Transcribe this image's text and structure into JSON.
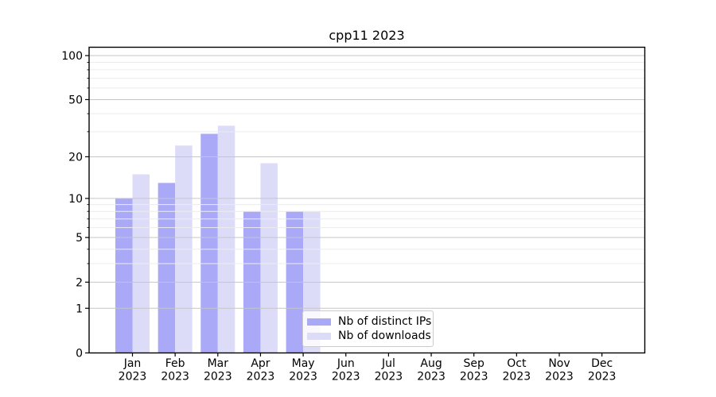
{
  "colors": {
    "distinct_ips_bar": "#a9a9f8",
    "downloads_bar": "#dcdcf9",
    "grid_major": "#c6c6c6",
    "grid_minor": "#ececec",
    "axis": "#000000",
    "tick_label": "#000000",
    "legend_border": "#cccccc",
    "background": "#ffffff"
  },
  "chart_data": {
    "type": "bar",
    "title": "cpp11 2023",
    "categories": [
      "Jan 2023",
      "Feb 2023",
      "Mar 2023",
      "Apr 2023",
      "May 2023",
      "Jun 2023",
      "Jul 2023",
      "Aug 2023",
      "Sep 2023",
      "Oct 2023",
      "Nov 2023",
      "Dec 2023"
    ],
    "series": [
      {
        "name": "Nb of distinct IPs",
        "color": "#a9a9f8",
        "values": [
          10,
          13,
          29,
          8,
          8,
          0,
          0,
          0,
          0,
          0,
          0,
          0
        ]
      },
      {
        "name": "Nb of downloads",
        "color": "#dcdcf9",
        "values": [
          15,
          24,
          33,
          18,
          8,
          0,
          0,
          0,
          0,
          0,
          0,
          0
        ]
      }
    ],
    "xlabel": "",
    "ylabel": "",
    "y_scale": "log10(value+1)",
    "y_ticks": [
      0,
      1,
      2,
      5,
      10,
      20,
      50,
      100
    ],
    "y_tick_labels": [
      "0",
      "1",
      "2",
      "5",
      "10",
      "20",
      "50",
      "100"
    ],
    "y_minor_ticks": [
      3,
      4,
      6,
      7,
      8,
      9,
      30,
      40,
      60,
      70,
      80,
      90
    ],
    "ylim": [
      0,
      113
    ],
    "grid": "on",
    "legend_position": "lower center"
  }
}
